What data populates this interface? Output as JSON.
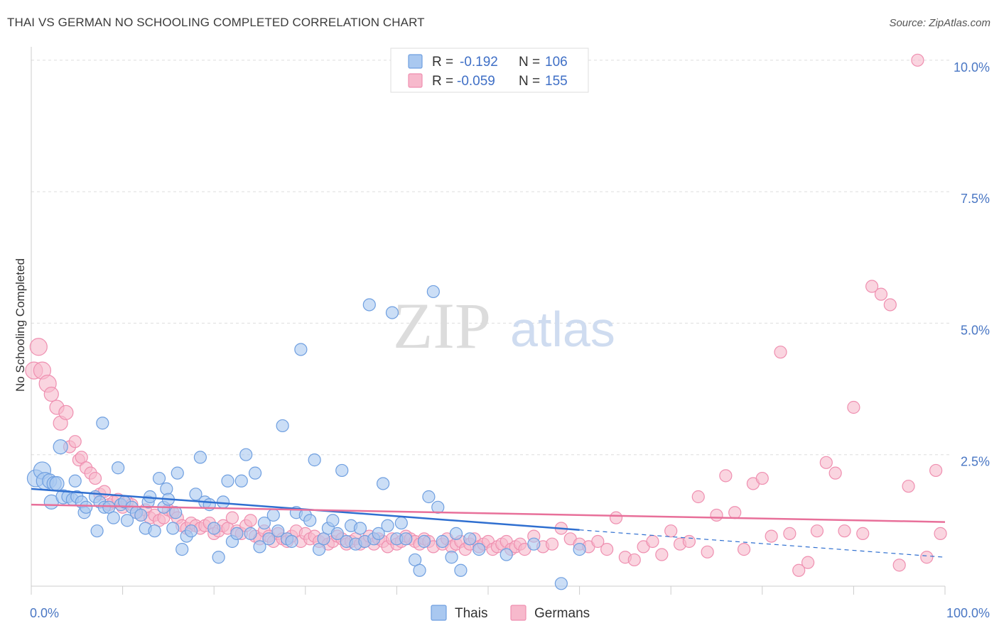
{
  "title": "THAI VS GERMAN NO SCHOOLING COMPLETED CORRELATION CHART",
  "source": "Source: ZipAtlas.com",
  "watermark": {
    "zip": "ZIP",
    "atlas": "atlas"
  },
  "colors": {
    "thais_fill": "#a9c8f0",
    "thais_stroke": "#6f9fe0",
    "thais_line": "#2f6fd0",
    "germans_fill": "#f7b9cc",
    "germans_stroke": "#ef8fb0",
    "germans_line": "#e8709a",
    "grid": "#dddddd",
    "axis": "#cccccc"
  },
  "legend": {
    "rows": [
      {
        "r_label": "R =",
        "r_value": "-0.192",
        "n_label": "N =",
        "n_value": "106"
      },
      {
        "r_label": "R =",
        "r_value": "-0.059",
        "n_label": "N =",
        "n_value": "155"
      }
    ]
  },
  "bottom_legend": [
    "Thais",
    "Germans"
  ],
  "chart_data": {
    "type": "scatter",
    "title": "THAI VS GERMAN NO SCHOOLING COMPLETED CORRELATION CHART",
    "xlabel": "",
    "ylabel": "No Schooling Completed",
    "xlim": [
      0,
      100
    ],
    "ylim": [
      0,
      10.2
    ],
    "x_tick_labels": [
      "0.0%",
      "100.0%"
    ],
    "y_ticks": [
      2.5,
      5.0,
      7.5,
      10.0
    ],
    "y_tick_labels": [
      "2.5%",
      "5.0%",
      "7.5%",
      "10.0%"
    ],
    "grid": true,
    "legend_position": "top-center",
    "series": [
      {
        "name": "Thais",
        "r": -0.192,
        "n": 106,
        "trend": {
          "x": [
            0,
            60
          ],
          "y": [
            1.85,
            1.07
          ],
          "dashed_to": [
            100,
            0.55
          ]
        },
        "points": [
          [
            0.5,
            2.05
          ],
          [
            1.2,
            2.2
          ],
          [
            1.5,
            2.0
          ],
          [
            2,
            2.0
          ],
          [
            2.5,
            1.95
          ],
          [
            2.8,
            1.95
          ],
          [
            2.2,
            1.6
          ],
          [
            3.2,
            2.65
          ],
          [
            3.5,
            1.7
          ],
          [
            4,
            1.7
          ],
          [
            4.5,
            1.65
          ],
          [
            5,
            1.7
          ],
          [
            4.8,
            2.0
          ],
          [
            5.5,
            1.6
          ],
          [
            5.8,
            1.4
          ],
          [
            6,
            1.5
          ],
          [
            7,
            1.7
          ],
          [
            7.5,
            1.6
          ],
          [
            7.8,
            3.1
          ],
          [
            7.2,
            1.05
          ],
          [
            8,
            1.5
          ],
          [
            8.5,
            1.5
          ],
          [
            9,
            1.3
          ],
          [
            9.5,
            2.25
          ],
          [
            9.8,
            1.55
          ],
          [
            10.2,
            1.6
          ],
          [
            10.5,
            1.25
          ],
          [
            11,
            1.5
          ],
          [
            11.5,
            1.4
          ],
          [
            12,
            1.35
          ],
          [
            12.5,
            1.1
          ],
          [
            12.8,
            1.6
          ],
          [
            13,
            1.7
          ],
          [
            13.5,
            1.05
          ],
          [
            14,
            2.05
          ],
          [
            14.5,
            1.5
          ],
          [
            14.8,
            1.85
          ],
          [
            15,
            1.65
          ],
          [
            15.5,
            1.1
          ],
          [
            15.8,
            1.4
          ],
          [
            16,
            2.15
          ],
          [
            16.5,
            0.7
          ],
          [
            17,
            0.95
          ],
          [
            17.5,
            1.05
          ],
          [
            18,
            1.75
          ],
          [
            18.5,
            2.45
          ],
          [
            19,
            1.6
          ],
          [
            19.5,
            1.55
          ],
          [
            20,
            1.1
          ],
          [
            20.5,
            0.55
          ],
          [
            21,
            1.6
          ],
          [
            21.5,
            2.0
          ],
          [
            22,
            0.85
          ],
          [
            22.5,
            1.0
          ],
          [
            23,
            2.0
          ],
          [
            23.5,
            2.5
          ],
          [
            24,
            1.0
          ],
          [
            24.5,
            2.15
          ],
          [
            25,
            0.75
          ],
          [
            25.5,
            1.2
          ],
          [
            26,
            0.9
          ],
          [
            26.5,
            1.35
          ],
          [
            27,
            1.05
          ],
          [
            27.5,
            3.05
          ],
          [
            28,
            0.9
          ],
          [
            28.5,
            0.85
          ],
          [
            29,
            1.4
          ],
          [
            29.5,
            4.5
          ],
          [
            30,
            1.35
          ],
          [
            30.5,
            1.25
          ],
          [
            31,
            2.4
          ],
          [
            31.5,
            0.7
          ],
          [
            32,
            0.9
          ],
          [
            32.5,
            1.1
          ],
          [
            33,
            1.25
          ],
          [
            33.5,
            1.0
          ],
          [
            34,
            2.2
          ],
          [
            34.5,
            0.85
          ],
          [
            35,
            1.15
          ],
          [
            35.5,
            0.8
          ],
          [
            36,
            1.1
          ],
          [
            36.5,
            0.85
          ],
          [
            37,
            5.35
          ],
          [
            37.5,
            0.9
          ],
          [
            38,
            1.0
          ],
          [
            38.5,
            1.95
          ],
          [
            39,
            1.15
          ],
          [
            39.5,
            5.2
          ],
          [
            40,
            0.9
          ],
          [
            40.5,
            1.2
          ],
          [
            41,
            0.9
          ],
          [
            42,
            0.5
          ],
          [
            42.5,
            0.3
          ],
          [
            43,
            0.85
          ],
          [
            43.5,
            1.7
          ],
          [
            44,
            5.6
          ],
          [
            44.5,
            1.5
          ],
          [
            45,
            0.85
          ],
          [
            46,
            0.55
          ],
          [
            46.5,
            1.0
          ],
          [
            47,
            0.3
          ],
          [
            48,
            0.9
          ],
          [
            49,
            0.7
          ],
          [
            52,
            0.6
          ],
          [
            55,
            0.8
          ],
          [
            58,
            0.05
          ],
          [
            60,
            0.7
          ]
        ]
      },
      {
        "name": "Germans",
        "r": -0.059,
        "n": 155,
        "trend": {
          "x": [
            0,
            100
          ],
          "y": [
            1.55,
            1.22
          ]
        },
        "points": [
          [
            0.3,
            4.1
          ],
          [
            0.8,
            4.55
          ],
          [
            1.2,
            4.1
          ],
          [
            1.8,
            3.85
          ],
          [
            2.2,
            3.65
          ],
          [
            2.8,
            3.4
          ],
          [
            3.2,
            3.1
          ],
          [
            3.8,
            3.3
          ],
          [
            4.2,
            2.65
          ],
          [
            4.8,
            2.75
          ],
          [
            5.2,
            2.4
          ],
          [
            5.5,
            2.45
          ],
          [
            6,
            2.25
          ],
          [
            6.5,
            2.15
          ],
          [
            7,
            2.05
          ],
          [
            7.5,
            1.75
          ],
          [
            8,
            1.8
          ],
          [
            8.5,
            1.55
          ],
          [
            9,
            1.6
          ],
          [
            9.5,
            1.65
          ],
          [
            10,
            1.5
          ],
          [
            10.5,
            1.6
          ],
          [
            11,
            1.55
          ],
          [
            11.5,
            1.4
          ],
          [
            12,
            1.35
          ],
          [
            12.5,
            1.45
          ],
          [
            13,
            1.3
          ],
          [
            13.5,
            1.35
          ],
          [
            14,
            1.25
          ],
          [
            14.5,
            1.3
          ],
          [
            15,
            1.45
          ],
          [
            15.5,
            1.4
          ],
          [
            16,
            1.3
          ],
          [
            16.5,
            1.15
          ],
          [
            17,
            1.1
          ],
          [
            17.5,
            1.2
          ],
          [
            18,
            1.15
          ],
          [
            18.5,
            1.1
          ],
          [
            19,
            1.15
          ],
          [
            19.5,
            1.2
          ],
          [
            20,
            1.0
          ],
          [
            20.5,
            1.05
          ],
          [
            21,
            1.15
          ],
          [
            21.5,
            1.1
          ],
          [
            22,
            1.3
          ],
          [
            22.5,
            1.05
          ],
          [
            23,
            1.0
          ],
          [
            23.5,
            1.15
          ],
          [
            24,
            1.25
          ],
          [
            24.5,
            0.95
          ],
          [
            25,
            0.9
          ],
          [
            25.5,
            1.05
          ],
          [
            26,
            0.95
          ],
          [
            26.5,
            0.85
          ],
          [
            27,
            1.0
          ],
          [
            27.5,
            0.9
          ],
          [
            28,
            0.85
          ],
          [
            28.5,
            0.95
          ],
          [
            29,
            1.05
          ],
          [
            29.5,
            0.85
          ],
          [
            30,
            1.0
          ],
          [
            30.5,
            0.9
          ],
          [
            31,
            0.95
          ],
          [
            31.5,
            0.85
          ],
          [
            32,
            0.9
          ],
          [
            32.5,
            0.8
          ],
          [
            33,
            0.85
          ],
          [
            33.5,
            0.95
          ],
          [
            34,
            0.9
          ],
          [
            34.5,
            0.8
          ],
          [
            35,
            0.85
          ],
          [
            35.5,
            0.9
          ],
          [
            36,
            0.8
          ],
          [
            36.5,
            0.85
          ],
          [
            37,
            0.95
          ],
          [
            37.5,
            0.8
          ],
          [
            38,
            0.9
          ],
          [
            38.5,
            0.85
          ],
          [
            39,
            0.75
          ],
          [
            39.5,
            0.9
          ],
          [
            40,
            0.8
          ],
          [
            40.5,
            0.85
          ],
          [
            41,
            0.95
          ],
          [
            41.5,
            0.9
          ],
          [
            42,
            0.85
          ],
          [
            42.5,
            0.8
          ],
          [
            43,
            0.9
          ],
          [
            43.5,
            0.85
          ],
          [
            44,
            0.75
          ],
          [
            45,
            0.8
          ],
          [
            45.5,
            0.9
          ],
          [
            46,
            0.75
          ],
          [
            46.5,
            0.8
          ],
          [
            47,
            0.85
          ],
          [
            47.5,
            0.7
          ],
          [
            48,
            0.8
          ],
          [
            48.5,
            0.9
          ],
          [
            49,
            0.75
          ],
          [
            49.5,
            0.8
          ],
          [
            50,
            0.85
          ],
          [
            50.5,
            0.7
          ],
          [
            51,
            0.75
          ],
          [
            51.5,
            0.8
          ],
          [
            52,
            0.85
          ],
          [
            52.5,
            0.7
          ],
          [
            53,
            0.75
          ],
          [
            53.5,
            0.8
          ],
          [
            54,
            0.7
          ],
          [
            55,
            0.95
          ],
          [
            56,
            0.75
          ],
          [
            57,
            0.8
          ],
          [
            58,
            1.1
          ],
          [
            59,
            0.9
          ],
          [
            60,
            0.8
          ],
          [
            61,
            0.75
          ],
          [
            62,
            0.85
          ],
          [
            63,
            0.7
          ],
          [
            64,
            1.3
          ],
          [
            65,
            0.55
          ],
          [
            66,
            0.5
          ],
          [
            67,
            0.75
          ],
          [
            68,
            0.85
          ],
          [
            69,
            0.6
          ],
          [
            70,
            1.05
          ],
          [
            71,
            0.8
          ],
          [
            72,
            0.85
          ],
          [
            73,
            1.7
          ],
          [
            74,
            0.65
          ],
          [
            75,
            1.35
          ],
          [
            76,
            2.1
          ],
          [
            77,
            1.4
          ],
          [
            78,
            0.7
          ],
          [
            79,
            1.95
          ],
          [
            80,
            2.05
          ],
          [
            81,
            0.95
          ],
          [
            82,
            4.45
          ],
          [
            83,
            1.0
          ],
          [
            84,
            0.3
          ],
          [
            85,
            0.45
          ],
          [
            86,
            1.05
          ],
          [
            87,
            2.35
          ],
          [
            88,
            2.15
          ],
          [
            89,
            1.05
          ],
          [
            90,
            3.4
          ],
          [
            91,
            1.0
          ],
          [
            92,
            5.7
          ],
          [
            93,
            5.55
          ],
          [
            94,
            5.35
          ],
          [
            95,
            0.4
          ],
          [
            96,
            1.9
          ],
          [
            97,
            10.0
          ],
          [
            98,
            0.55
          ],
          [
            99,
            2.2
          ],
          [
            99.5,
            1.0
          ]
        ]
      }
    ]
  }
}
